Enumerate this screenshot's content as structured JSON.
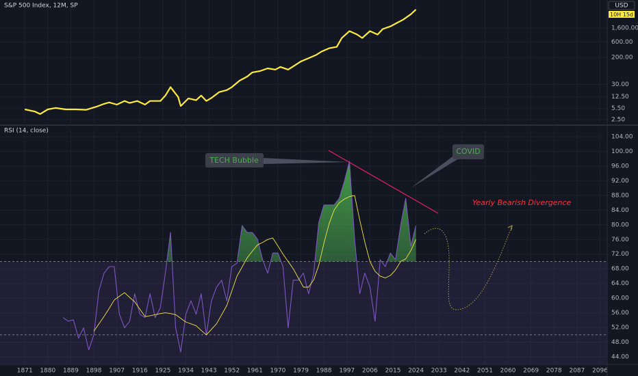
{
  "chart_data": [
    {
      "type": "line",
      "title": "S&P 500 Index, 12M, SP",
      "log_scale": true,
      "currency": "USD",
      "countdown": "10H 15d",
      "xlim": [
        1861.3,
        2098.8
      ],
      "ylim": [
        1.96,
        11560
      ],
      "yticks": [
        {
          "value": 2.5,
          "label": "2.50"
        },
        {
          "value": 5.5,
          "label": "5.50"
        },
        {
          "value": 12.5,
          "label": "12.50"
        },
        {
          "value": 30,
          "label": "30.00"
        },
        {
          "value": 200,
          "label": "200.00"
        },
        {
          "value": 600,
          "label": "600.00"
        },
        {
          "value": 1600,
          "label": "1,600.00"
        }
      ],
      "grid": true,
      "x": [
        1871,
        1875,
        1877,
        1880,
        1883,
        1887,
        1891,
        1895,
        1899,
        1902,
        1904,
        1907,
        1910,
        1912,
        1915,
        1918,
        1920,
        1924,
        1926,
        1928,
        1931,
        1932,
        1935,
        1938,
        1940,
        1942,
        1944,
        1947,
        1950,
        1952,
        1955,
        1958,
        1960,
        1963,
        1966,
        1969,
        1971,
        1974,
        1977,
        1979,
        1982,
        1985,
        1987,
        1990,
        1993,
        1995,
        1998,
        2001,
        2003,
        2006,
        2009,
        2011,
        2014,
        2017,
        2019,
        2022,
        2024
      ],
      "series": [
        {
          "color": "#ffeb3b",
          "values": [
            5.15,
            4.4,
            3.7,
            5.15,
            5.7,
            5.15,
            5.15,
            5.0,
            6.2,
            7.6,
            8.4,
            7.2,
            9.3,
            8.1,
            9.3,
            7.2,
            9.3,
            9.3,
            13.6,
            24.8,
            12.3,
            6.5,
            11.2,
            9.8,
            13.6,
            9.3,
            11.5,
            17.4,
            20,
            24.8,
            39,
            52,
            70,
            77,
            93,
            85,
            103,
            85,
            120,
            152,
            191,
            240,
            303,
            383,
            422,
            792,
            1288,
            1013,
            792,
            1288,
            1013,
            1490,
            1800,
            2400,
            2900,
            4230,
            5900
          ]
        }
      ]
    },
    {
      "type": "line",
      "title": "RSI (14, close)",
      "xlim": [
        1861.3,
        2098.8
      ],
      "ylim": [
        42,
        106
      ],
      "xticks": [
        1871,
        1880,
        1889,
        1898,
        1907,
        1916,
        1925,
        1934,
        1943,
        1952,
        1961,
        1970,
        1979,
        1988,
        1997,
        2006,
        2015,
        2024,
        2033,
        2042,
        2051,
        2060,
        2069,
        2078,
        2087,
        2096
      ],
      "yticks": [
        {
          "value": 44,
          "label": "44.00"
        },
        {
          "value": 48,
          "label": "48.00"
        },
        {
          "value": 52,
          "label": "52.00"
        },
        {
          "value": 56,
          "label": "56.00"
        },
        {
          "value": 60,
          "label": "60.00"
        },
        {
          "value": 64,
          "label": "64.00"
        },
        {
          "value": 68,
          "label": "68.00"
        },
        {
          "value": 72,
          "label": "72.00"
        },
        {
          "value": 76,
          "label": "76.00"
        },
        {
          "value": 80,
          "label": "80.00"
        },
        {
          "value": 84,
          "label": "84.00"
        },
        {
          "value": 88,
          "label": "88.00"
        },
        {
          "value": 92,
          "label": "92.00"
        },
        {
          "value": 96,
          "label": "96.00"
        },
        {
          "value": 100,
          "label": "100.00"
        },
        {
          "value": 104,
          "label": "104.00"
        }
      ],
      "grid": true,
      "band": [
        30,
        70
      ],
      "band_color": "#7e57c2",
      "levels": [
        70,
        50
      ],
      "fill_above_color": "#4caf50",
      "annotations": [
        "TECH Bubble",
        "COVID",
        "Yearly Bearish Divergence"
      ],
      "x": [
        1886,
        1888,
        1890,
        1892,
        1894,
        1896,
        1898,
        1900,
        1902,
        1904,
        1906,
        1908,
        1910,
        1912,
        1914,
        1916,
        1918,
        1920,
        1922,
        1924,
        1926,
        1928,
        1930,
        1932,
        1934,
        1936,
        1938,
        1940,
        1942,
        1944,
        1946,
        1948,
        1950,
        1952,
        1954,
        1956,
        1958,
        1960,
        1962,
        1964,
        1966,
        1968,
        1970,
        1972,
        1974,
        1976,
        1978,
        1980,
        1982,
        1984,
        1986,
        1988,
        1990,
        1992,
        1994,
        1996,
        1998,
        2000,
        2002,
        2004,
        2006,
        2008,
        2010,
        2012,
        2014,
        2016,
        2018,
        2020,
        2022,
        2024
      ],
      "series": [
        {
          "color": "#7e57c2",
          "values": [
            54.7,
            53.7,
            54.1,
            49.1,
            51.9,
            45.9,
            50,
            62.1,
            66.8,
            68.6,
            68.6,
            55.6,
            51.9,
            53.7,
            61.2,
            55.6,
            54.7,
            61.2,
            54.7,
            57.4,
            66.8,
            77.9,
            51.9,
            45.3,
            55.6,
            59.3,
            55.6,
            61.2,
            50,
            59.3,
            63,
            64.9,
            59.3,
            68.6,
            69.5,
            79.8,
            77.9,
            77.9,
            76.1,
            70.5,
            66.8,
            72.3,
            72.3,
            68.6,
            51.9,
            64.9,
            64.9,
            66.8,
            61.2,
            66.8,
            80.7,
            85.4,
            85.4,
            85.4,
            87.2,
            91.9,
            97.3,
            76.1,
            61.2,
            66.8,
            63,
            53.7,
            70.5,
            68.6,
            72.3,
            70.5,
            79.8,
            87.2,
            74.2,
            79.8
          ]
        },
        {
          "color": "#f5e642",
          "values": [
            null,
            null,
            null,
            null,
            null,
            null,
            51,
            53,
            55,
            57.2,
            59.5,
            60.5,
            61.5,
            60.2,
            59,
            57,
            55,
            55.2,
            55.5,
            55.8,
            56,
            55.8,
            55.5,
            54.5,
            53.5,
            53,
            52.5,
            51.2,
            50,
            51.5,
            53,
            55.5,
            58,
            62,
            66,
            68.5,
            71,
            72.8,
            74.5,
            75.2,
            76,
            76.4,
            74.2,
            72,
            70,
            68,
            65.5,
            63,
            63,
            65,
            69,
            75,
            80.3,
            84,
            86,
            87,
            87.7,
            88,
            81.3,
            75.3,
            70,
            67.3,
            66,
            65.5,
            66.2,
            67.7,
            70,
            70.7,
            73,
            76
          ]
        }
      ]
    }
  ]
}
